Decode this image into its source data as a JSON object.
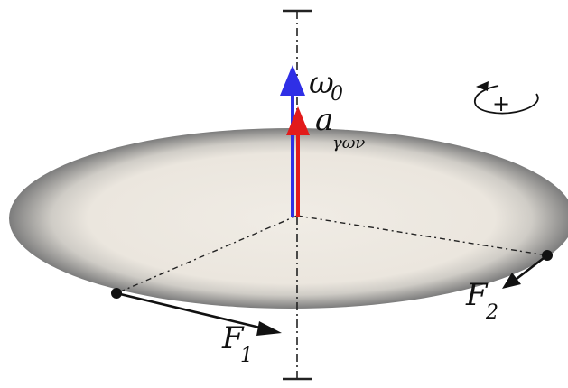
{
  "labels": {
    "omega_main": "ω",
    "omega_sub": "0",
    "a_main": "a",
    "a_sub": "γων",
    "f1_main": "F",
    "f1_sub": "1",
    "f2_main": "F",
    "f2_sub": "2",
    "rotation_sign": "+"
  },
  "colors": {
    "omega_vector": "#2f2fe6",
    "acceleration_vector": "#e21b1b",
    "disk_rim": "#7a7a7a",
    "disk_face": "#ece7df",
    "axis_line": "#222222"
  }
}
